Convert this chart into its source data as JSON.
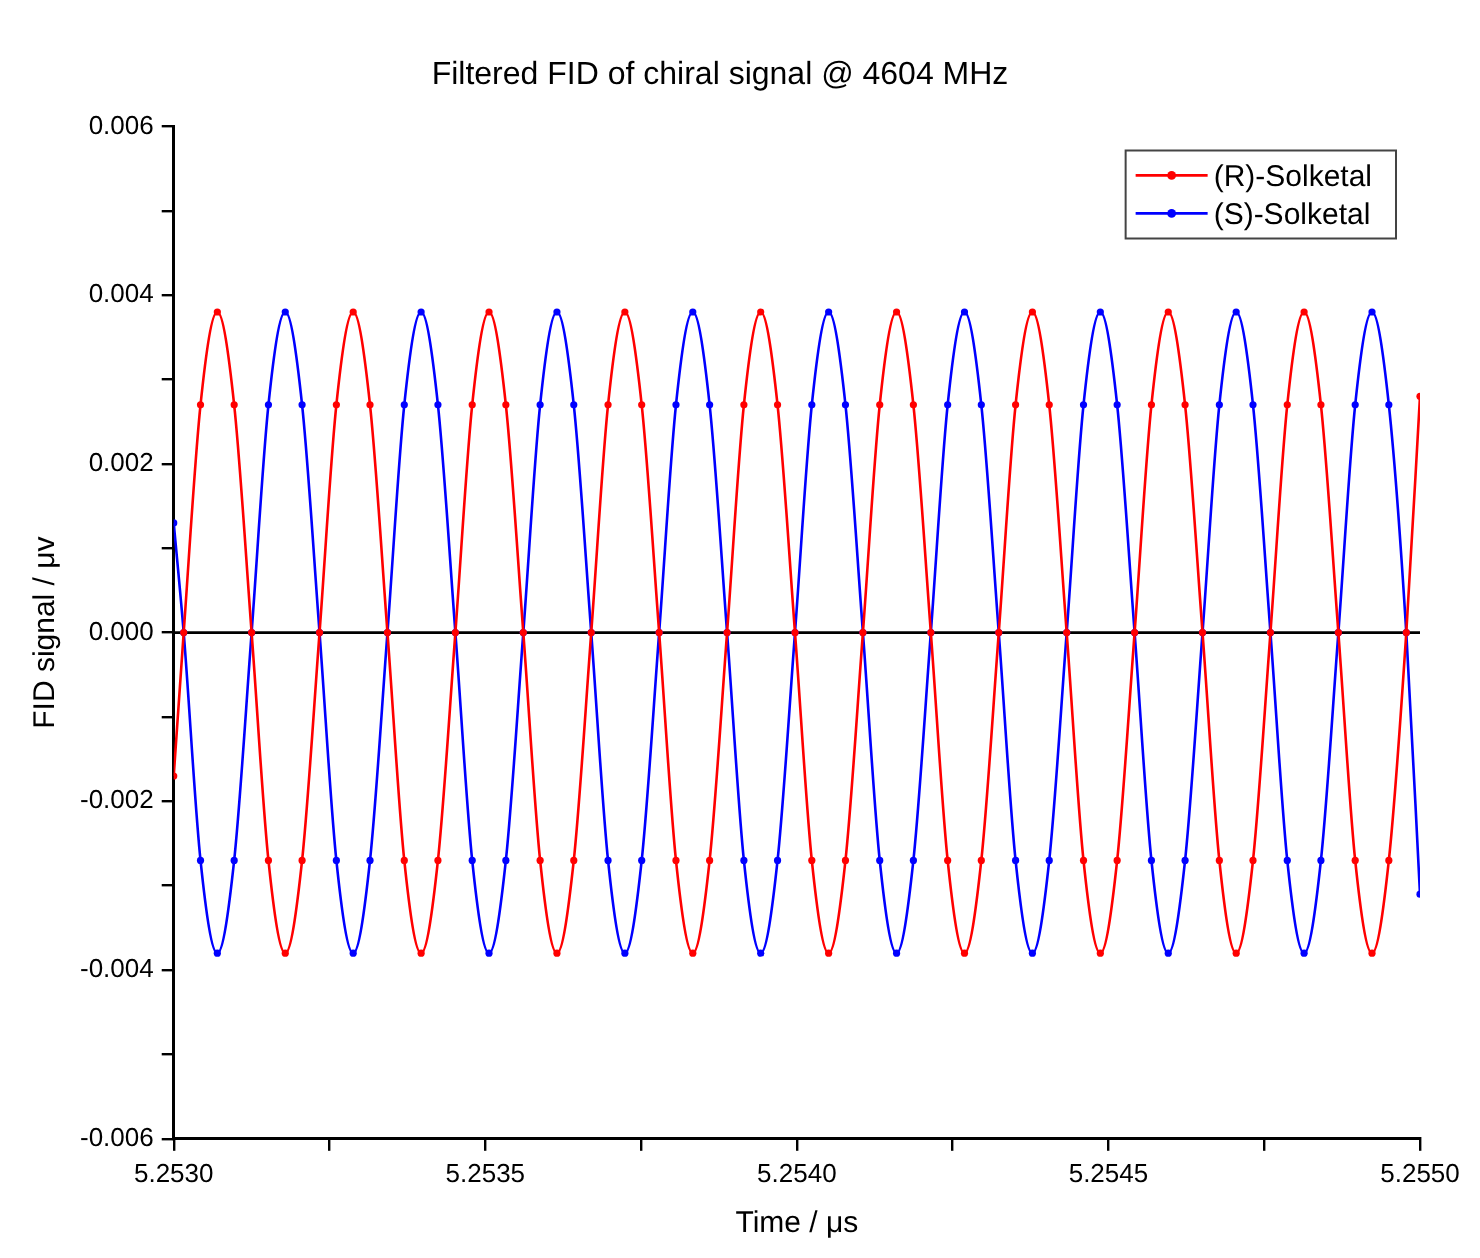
{
  "chart_data": {
    "type": "line",
    "title": "Filtered FID of chiral signal @ 4604 MHz",
    "xlabel": "Time / μs",
    "ylabel": "FID signal / μv",
    "x": [
      5.253,
      5.253016,
      5.253043,
      5.25307,
      5.253097,
      5.253125,
      5.253152,
      5.253179,
      5.253206,
      5.253234,
      5.253261,
      5.253288,
      5.253315,
      5.253343,
      5.25337,
      5.253397,
      5.253424,
      5.253452,
      5.253479,
      5.253506,
      5.253533,
      5.253561,
      5.253588,
      5.253615,
      5.253642,
      5.25367,
      5.253697,
      5.253724,
      5.253751,
      5.253779,
      5.253806,
      5.253833,
      5.25386,
      5.253888,
      5.253915,
      5.253942,
      5.253969,
      5.253997,
      5.254024,
      5.254051,
      5.254078,
      5.254106,
      5.254133,
      5.25416,
      5.254187,
      5.254215,
      5.254242,
      5.254269,
      5.254296,
      5.254324,
      5.254351,
      5.254378,
      5.254405,
      5.254433,
      5.25446,
      5.254487,
      5.254514,
      5.254542,
      5.254569,
      5.254596,
      5.254623,
      5.254651,
      5.254678,
      5.254705,
      5.254732,
      5.25476,
      5.254787,
      5.254814,
      5.254841,
      5.254869,
      5.254896,
      5.254923,
      5.25495,
      5.254978,
      5.255
    ],
    "series": [
      {
        "name": "(R)-Solketal",
        "color": "#ff0000",
        "values": [
          -0.0017,
          0,
          0.0027,
          0.0038,
          0.0027,
          0,
          -0.0027,
          -0.0038,
          -0.0027,
          0,
          0.0027,
          0.0038,
          0.0027,
          0,
          -0.0027,
          -0.0038,
          -0.0027,
          0,
          0.0027,
          0.0038,
          0.0027,
          0,
          -0.0027,
          -0.0038,
          -0.0027,
          0,
          0.0027,
          0.0038,
          0.0027,
          0,
          -0.0027,
          -0.0038,
          -0.0027,
          0,
          0.0027,
          0.0038,
          0.0027,
          0,
          -0.0027,
          -0.0038,
          -0.0027,
          0,
          0.0027,
          0.0038,
          0.0027,
          0,
          -0.0027,
          -0.0038,
          -0.0027,
          0,
          0.0027,
          0.0038,
          0.0027,
          0,
          -0.0027,
          -0.0038,
          -0.0027,
          0,
          0.0027,
          0.0038,
          0.0027,
          0,
          -0.0027,
          -0.0038,
          -0.0027,
          0,
          0.0027,
          0.0038,
          0.0027,
          0,
          -0.0027,
          -0.0038,
          -0.0027,
          0,
          0.0028
        ]
      },
      {
        "name": "(S)-Solketal",
        "color": "#0000ff",
        "values": [
          0.0013,
          0,
          -0.0027,
          -0.0038,
          -0.0027,
          0,
          0.0027,
          0.0038,
          0.0027,
          0,
          -0.0027,
          -0.0038,
          -0.0027,
          0,
          0.0027,
          0.0038,
          0.0027,
          0,
          -0.0027,
          -0.0038,
          -0.0027,
          0,
          0.0027,
          0.0038,
          0.0027,
          0,
          -0.0027,
          -0.0038,
          -0.0027,
          0,
          0.0027,
          0.0038,
          0.0027,
          0,
          -0.0027,
          -0.0038,
          -0.0027,
          0,
          0.0027,
          0.0038,
          0.0027,
          0,
          -0.0027,
          -0.0038,
          -0.0027,
          0,
          0.0027,
          0.0038,
          0.0027,
          0,
          -0.0027,
          -0.0038,
          -0.0027,
          0,
          0.0027,
          0.0038,
          0.0027,
          0,
          -0.0027,
          -0.0038,
          -0.0027,
          0,
          0.0027,
          0.0038,
          0.0027,
          0,
          -0.0027,
          -0.0038,
          -0.0027,
          0,
          0.0027,
          0.0038,
          0.0027,
          0,
          -0.0031
        ]
      }
    ],
    "xlim": [
      5.253,
      5.255
    ],
    "xticks": [
      {
        "value": 5.253,
        "label": "5.2530"
      },
      {
        "value": 5.25325,
        "label": null
      },
      {
        "value": 5.2535,
        "label": "5.2535"
      },
      {
        "value": 5.25375,
        "label": null
      },
      {
        "value": 5.254,
        "label": "5.2540"
      },
      {
        "value": 5.25425,
        "label": null
      },
      {
        "value": 5.2545,
        "label": "5.2545"
      },
      {
        "value": 5.25475,
        "label": null
      },
      {
        "value": 5.255,
        "label": "5.2550"
      }
    ],
    "ylim": [
      -0.006,
      0.006
    ],
    "yticks": [
      {
        "value": -0.006,
        "label": "-0.006"
      },
      {
        "value": -0.005,
        "label": null
      },
      {
        "value": -0.004,
        "label": "-0.004"
      },
      {
        "value": -0.003,
        "label": null
      },
      {
        "value": -0.002,
        "label": "-0.002"
      },
      {
        "value": -0.001,
        "label": null
      },
      {
        "value": 0,
        "label": "0.000"
      },
      {
        "value": 0.001,
        "label": null
      },
      {
        "value": 0.002,
        "label": "0.002"
      },
      {
        "value": 0.003,
        "label": null
      },
      {
        "value": 0.004,
        "label": "0.004"
      },
      {
        "value": 0.005,
        "label": null
      },
      {
        "value": 0.006,
        "label": "0.006"
      }
    ],
    "ref_lines": [
      {
        "axis": "y",
        "value": 0,
        "color": "#000000"
      }
    ],
    "legend": "top right",
    "marker": "circle",
    "line_style": "solid"
  }
}
